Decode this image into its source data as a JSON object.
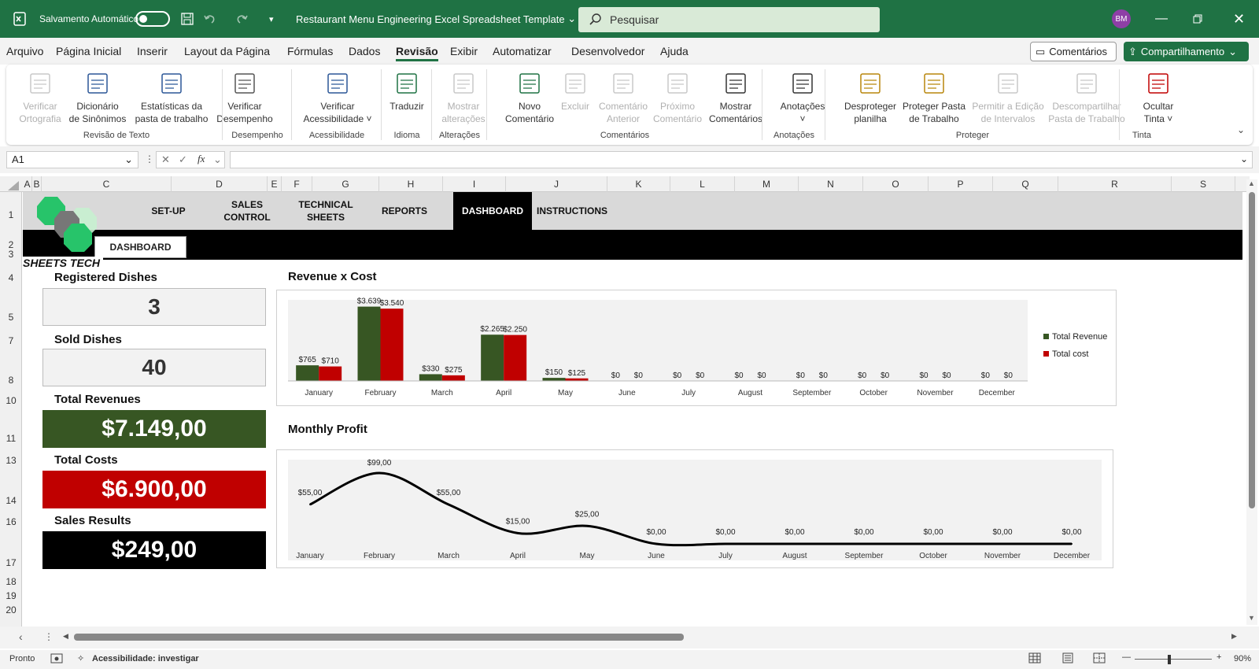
{
  "titlebar": {
    "autosave_label": "Salvamento Automático",
    "doc_title": "Restaurant Menu Engineering Excel Spreadsheet Template",
    "search_placeholder": "Pesquisar",
    "user_initials": "BM"
  },
  "menu": {
    "tabs": [
      "Arquivo",
      "Página Inicial",
      "Inserir",
      "Layout da Página",
      "Fórmulas",
      "Dados",
      "Revisão",
      "Exibir",
      "Automatizar",
      "Desenvolvedor",
      "Ajuda"
    ],
    "active_tab": "Revisão",
    "comments_btn": "Comentários",
    "share_btn": "Compartilhamento"
  },
  "ribbon": {
    "buttons": [
      {
        "l1": "Verificar",
        "l2": "Ortografia",
        "icon": "spellcheck-icon",
        "enabled": false
      },
      {
        "l1": "Dicionário",
        "l2": "de Sinônimos",
        "icon": "thesaurus-icon",
        "enabled": true
      },
      {
        "l1": "Estatísticas da",
        "l2": "pasta de trabalho",
        "icon": "workbook-statistics-icon",
        "enabled": true
      },
      {
        "l1": "Verificar",
        "l2": "Desempenho",
        "icon": "performance-icon",
        "enabled": true
      },
      {
        "l1": "Verificar",
        "l2": "Acessibilidade ˅",
        "icon": "accessibility-icon",
        "enabled": true
      },
      {
        "l1": "Traduzir",
        "l2": "",
        "icon": "translate-icon",
        "enabled": true
      },
      {
        "l1": "Mostrar",
        "l2": "alterações",
        "icon": "show-changes-icon",
        "enabled": false
      },
      {
        "l1": "Novo",
        "l2": "Comentário",
        "icon": "new-comment-icon",
        "enabled": true
      },
      {
        "l1": "Excluir",
        "l2": "",
        "icon": "delete-comment-icon",
        "enabled": false
      },
      {
        "l1": "Comentário",
        "l2": "Anterior",
        "icon": "previous-comment-icon",
        "enabled": false
      },
      {
        "l1": "Próximo",
        "l2": "Comentário",
        "icon": "next-comment-icon",
        "enabled": false
      },
      {
        "l1": "Mostrar",
        "l2": "Comentários",
        "icon": "show-comments-icon",
        "enabled": true
      },
      {
        "l1": "Anotações",
        "l2": "˅",
        "icon": "notes-icon",
        "enabled": true
      },
      {
        "l1": "Desproteger",
        "l2": "planilha",
        "icon": "unprotect-sheet-icon",
        "enabled": true
      },
      {
        "l1": "Proteger Pasta",
        "l2": "de Trabalho",
        "icon": "protect-workbook-icon",
        "enabled": true
      },
      {
        "l1": "Permitir a Edição",
        "l2": "de Intervalos",
        "icon": "allow-edit-ranges-icon",
        "enabled": false
      },
      {
        "l1": "Descompartilhar",
        "l2": "Pasta de Trabalho",
        "icon": "unshare-workbook-icon",
        "enabled": false
      },
      {
        "l1": "Ocultar",
        "l2": "Tinta ˅",
        "icon": "hide-ink-icon",
        "enabled": true
      }
    ],
    "groups": [
      "Revisão de Texto",
      "Desempenho",
      "Acessibilidade",
      "Idioma",
      "Alterações",
      "Comentários",
      "Anotações",
      "Proteger",
      "Tinta"
    ]
  },
  "formula_bar": {
    "cell_ref": "A1",
    "fx": "fx",
    "content": ""
  },
  "grid": {
    "columns": [
      "A",
      "B",
      "C",
      "D",
      "E",
      "F",
      "G",
      "H",
      "I",
      "J",
      "K",
      "L",
      "M",
      "N",
      "O",
      "P",
      "Q",
      "R",
      "S"
    ],
    "rows": [
      "1",
      "2",
      "3",
      "4",
      "5",
      "7",
      "8",
      "10",
      "11",
      "13",
      "14",
      "16",
      "17",
      "18",
      "19",
      "20"
    ]
  },
  "dashboard": {
    "nav": [
      {
        "label": "SET-UP",
        "active": false
      },
      {
        "label": "SALES CONTROL",
        "active": false
      },
      {
        "label": "TECHNICAL SHEETS",
        "active": false
      },
      {
        "label": "REPORTS",
        "active": false
      },
      {
        "label": "DASHBOARD",
        "active": true
      },
      {
        "label": "INSTRUCTIONS",
        "active": false
      }
    ],
    "subtab": "DASHBOARD",
    "brand": "SHEETS TECH",
    "kpis": [
      {
        "label": "Registered Dishes",
        "value": "3",
        "style": "grey"
      },
      {
        "label": "Sold Dishes",
        "value": "40",
        "style": "grey"
      },
      {
        "label": "Total Revenues",
        "value": "$7.149,00",
        "style": "green"
      },
      {
        "label": "Total Costs",
        "value": "$6.900,00",
        "style": "red"
      },
      {
        "label": "Sales Results",
        "value": "$249,00",
        "style": "black"
      }
    ],
    "colors": {
      "green": "#375623",
      "red": "#c00000",
      "black": "#000000"
    }
  },
  "chart_data": [
    {
      "type": "bar",
      "title": "Revenue x Cost",
      "categories": [
        "January",
        "February",
        "March",
        "April",
        "May",
        "June",
        "July",
        "August",
        "September",
        "October",
        "November",
        "December"
      ],
      "series": [
        {
          "name": "Total Revenue",
          "color": "#375623",
          "values": [
            765,
            3639,
            330,
            2265,
            150,
            0,
            0,
            0,
            0,
            0,
            0,
            0
          ],
          "labels": [
            "$765",
            "$3.639",
            "$330",
            "$2.265",
            "$150",
            "$0",
            "$0",
            "$0",
            "$0",
            "$0",
            "$0",
            "$0"
          ]
        },
        {
          "name": "Total cost",
          "color": "#c00000",
          "values": [
            710,
            3540,
            275,
            2250,
            125,
            0,
            0,
            0,
            0,
            0,
            0,
            0
          ],
          "labels": [
            "$710",
            "$3.540",
            "$275",
            "$2.250",
            "$125",
            "$0",
            "$0",
            "$0",
            "$0",
            "$0",
            "$0",
            "$0"
          ]
        }
      ],
      "ylim": [
        0,
        3700
      ],
      "legend": "right"
    },
    {
      "type": "line",
      "title": "Monthly Profit",
      "categories": [
        "January",
        "February",
        "March",
        "April",
        "May",
        "June",
        "July",
        "August",
        "September",
        "October",
        "November",
        "December"
      ],
      "series": [
        {
          "values": [
            55,
            99,
            55,
            15,
            25,
            0,
            0,
            0,
            0,
            0,
            0,
            0
          ],
          "labels": [
            "$55,00",
            "$99,00",
            "$55,00",
            "$15,00",
            "$25,00",
            "$0,00",
            "$0,00",
            "$0,00",
            "$0,00",
            "$0,00",
            "$0,00",
            "$0,00"
          ]
        }
      ],
      "ylim": [
        0,
        105
      ],
      "smooth": true
    }
  ],
  "status": {
    "ready": "Pronto",
    "accessibility": "Acessibilidade: investigar",
    "zoom": "90%"
  }
}
